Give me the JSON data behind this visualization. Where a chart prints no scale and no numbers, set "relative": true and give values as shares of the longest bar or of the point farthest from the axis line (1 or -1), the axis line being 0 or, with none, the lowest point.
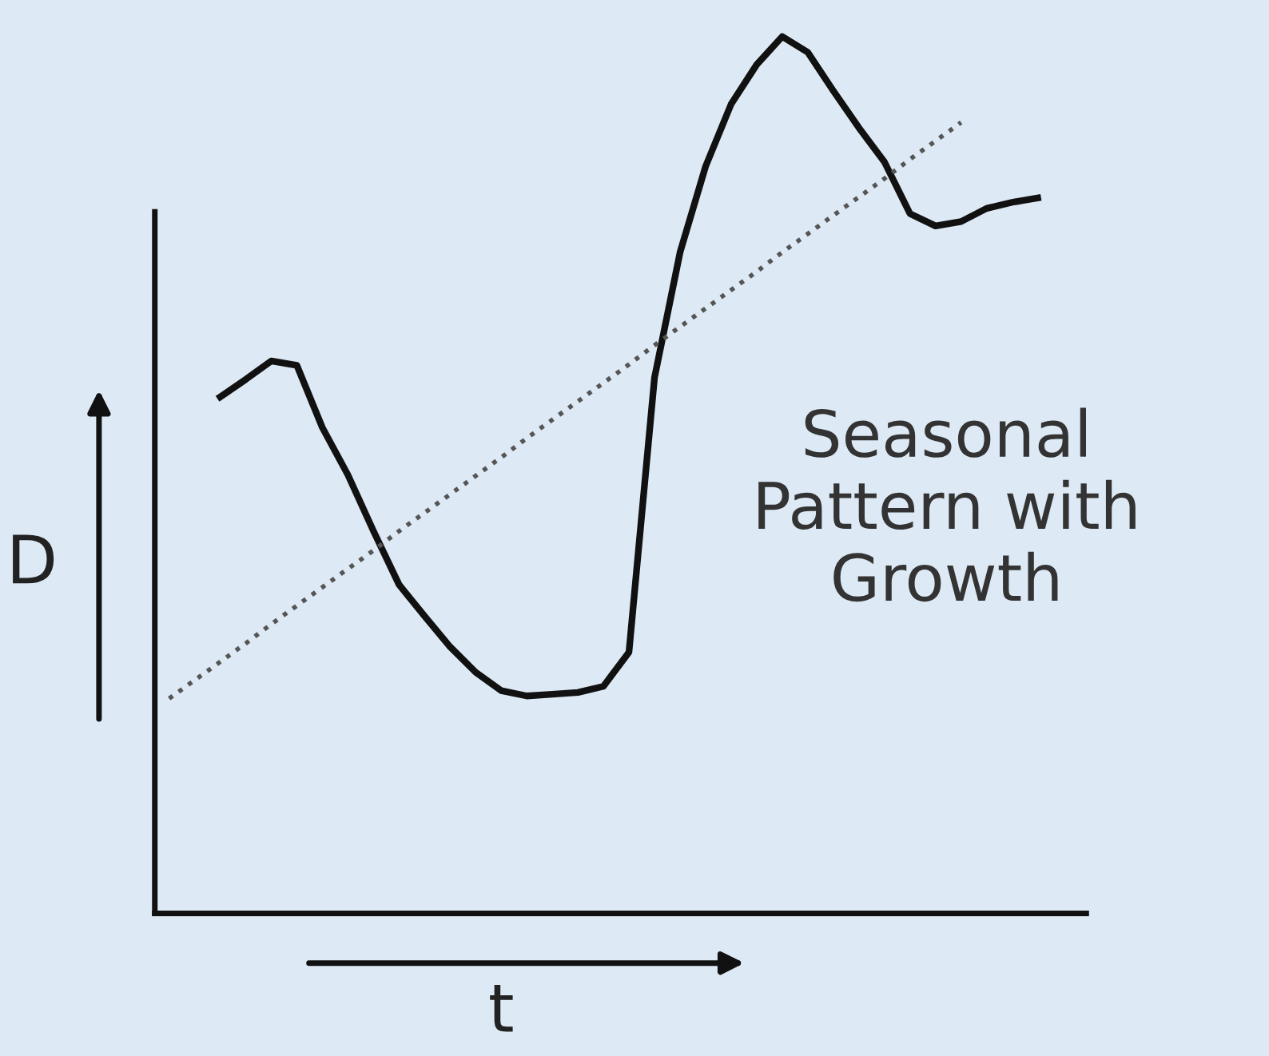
{
  "chart_data": {
    "type": "line",
    "relative": true,
    "xlabel": "t",
    "ylabel": "D",
    "grid": false,
    "legend": false,
    "marker": "none",
    "categories": [
      null,
      null,
      null,
      null,
      null,
      null,
      null,
      null,
      null,
      null,
      null,
      null,
      null,
      null,
      null,
      null,
      null,
      null,
      null,
      null,
      null,
      null,
      null,
      null,
      null,
      null,
      null,
      null,
      null,
      null,
      null,
      null,
      null,
      null,
      null
    ],
    "series": [
      {
        "color": "#111111",
        "line_style": "solid",
        "values": [
          null,
          null,
          0.589,
          0.609,
          0.63,
          0.625,
          0.554,
          0.5,
          0.436,
          0.375,
          0.339,
          0.304,
          0.275,
          0.254,
          0.248,
          0.25,
          0.252,
          0.259,
          0.298,
          0.611,
          0.754,
          0.852,
          0.923,
          0.968,
          1.0,
          0.982,
          0.938,
          0.896,
          0.857,
          0.798,
          0.784,
          0.789,
          0.804,
          0.811,
          0.816
        ]
      },
      {
        "color": "#555555",
        "line_style": "dotted",
        "values": [
          0.245,
          0.266,
          0.287,
          0.308,
          0.33,
          0.351,
          0.372,
          0.393,
          0.414,
          0.436,
          0.457,
          0.478,
          0.499,
          0.52,
          0.542,
          0.563,
          0.584,
          0.605,
          0.626,
          0.648,
          0.669,
          0.69,
          0.711,
          0.732,
          0.754,
          0.775,
          0.796,
          0.817,
          0.838,
          0.86,
          0.881,
          0.902,
          null,
          null,
          null
        ]
      }
    ],
    "annotations": [
      "Seasonal\nPattern with\nGrowth"
    ]
  }
}
